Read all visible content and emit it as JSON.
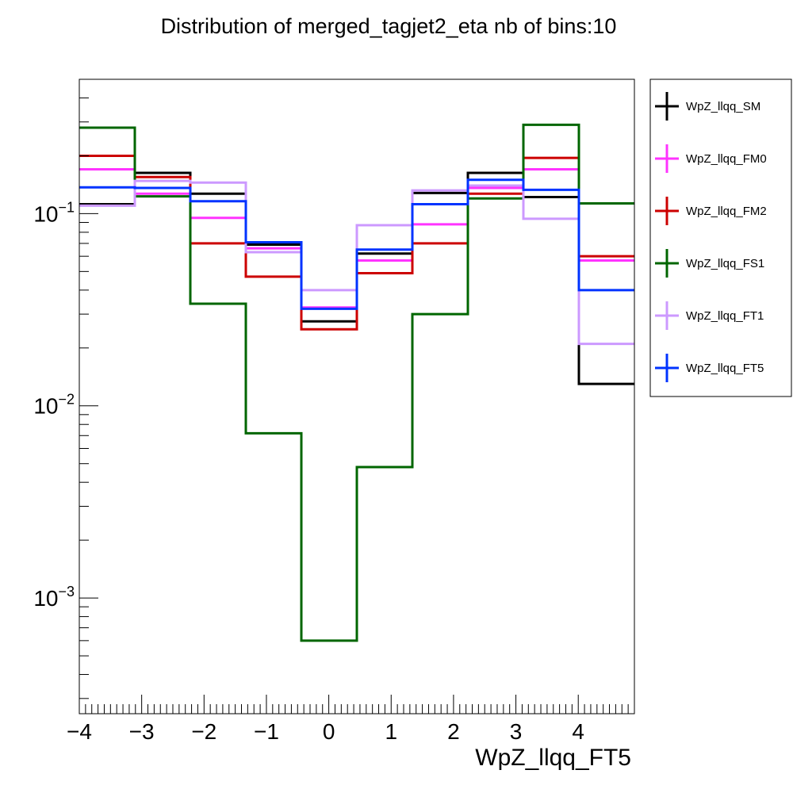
{
  "chart_data": {
    "type": "line",
    "title": "Distribution of merged_tagjet2_eta nb of bins:10",
    "xlabel": "WpZ_llqq_FT5",
    "ylabel": "",
    "xlim": [
      -4,
      4.9
    ],
    "ylim": [
      0.00025,
      0.5
    ],
    "y_scale": "log",
    "grid": false,
    "legend_position": "right",
    "bin_edges": [
      -4.0,
      -3.11,
      -2.22,
      -1.33,
      -0.44,
      0.45,
      1.34,
      2.23,
      3.12,
      4.01,
      4.9
    ],
    "x_ticks": [
      {
        "value": -4,
        "label": "−4"
      },
      {
        "value": -3,
        "label": "−3"
      },
      {
        "value": -2,
        "label": "−2"
      },
      {
        "value": -1,
        "label": "−1"
      },
      {
        "value": 0,
        "label": "0"
      },
      {
        "value": 1,
        "label": "1"
      },
      {
        "value": 2,
        "label": "2"
      },
      {
        "value": 3,
        "label": "3"
      },
      {
        "value": 4,
        "label": "4"
      }
    ],
    "y_ticks": [
      {
        "value": 0.1,
        "base": "10",
        "exp": "−1"
      },
      {
        "value": 0.01,
        "base": "10",
        "exp": "−2"
      },
      {
        "value": 0.001,
        "base": "10",
        "exp": "−3"
      }
    ],
    "series": [
      {
        "name": "WpZ_llqq_SM",
        "color": "#000000",
        "values": [
          0.112,
          0.163,
          0.127,
          0.069,
          0.0275,
          0.062,
          0.128,
          0.163,
          0.122,
          0.013
        ]
      },
      {
        "name": "WpZ_llqq_FM0",
        "color": "#ff33ff",
        "values": [
          0.17,
          0.127,
          0.095,
          0.066,
          0.0325,
          0.057,
          0.088,
          0.136,
          0.17,
          0.057
        ]
      },
      {
        "name": "WpZ_llqq_FM2",
        "color": "#cc0000",
        "values": [
          0.2,
          0.155,
          0.07,
          0.047,
          0.025,
          0.049,
          0.07,
          0.127,
          0.195,
          0.06
        ]
      },
      {
        "name": "WpZ_llqq_FS1",
        "color": "#006600",
        "values": [
          0.28,
          0.123,
          0.034,
          0.0072,
          0.0006,
          0.0048,
          0.03,
          0.12,
          0.29,
          0.113
        ]
      },
      {
        "name": "WpZ_llqq_FT1",
        "color": "#cc99ff",
        "values": [
          0.11,
          0.148,
          0.145,
          0.063,
          0.04,
          0.087,
          0.132,
          0.14,
          0.094,
          0.021
        ]
      },
      {
        "name": "WpZ_llqq_FT5",
        "color": "#0033ff",
        "values": [
          0.137,
          0.136,
          0.116,
          0.071,
          0.032,
          0.065,
          0.112,
          0.15,
          0.133,
          0.04
        ]
      }
    ]
  }
}
